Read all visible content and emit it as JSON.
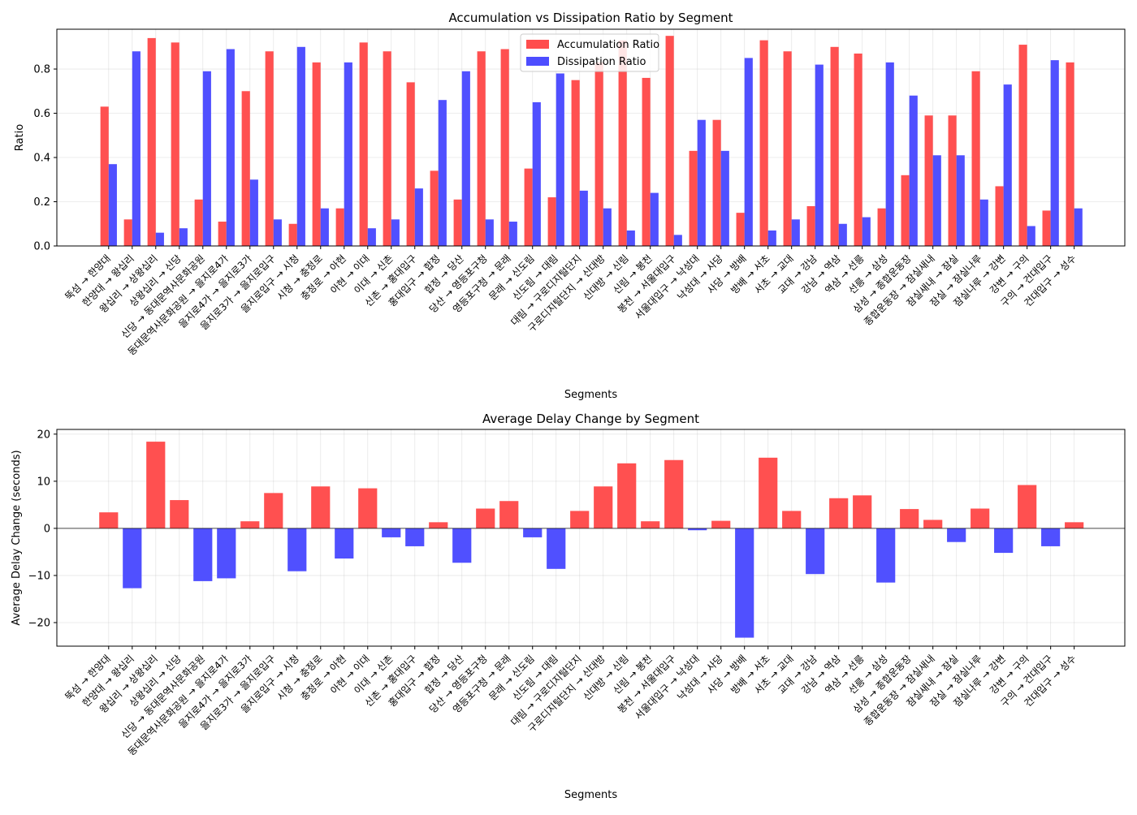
{
  "chart_data": [
    {
      "type": "bar",
      "title": "Accumulation vs Dissipation Ratio by Segment",
      "xlabel": "Segments",
      "ylabel": "Ratio",
      "ylim": [
        0,
        0.98
      ],
      "yticks": [
        0.0,
        0.2,
        0.4,
        0.6,
        0.8
      ],
      "ytick_labels": [
        "0.0",
        "0.2",
        "0.4",
        "0.6",
        "0.8"
      ],
      "grid": true,
      "legend": "top-center",
      "categories": [
        "뚝섬 → 한양대",
        "한양대 → 왕십리",
        "왕십리 → 상왕십리",
        "상왕십리 → 신당",
        "신당 → 동대문역사문화공원",
        "동대문역사문화공원 → 을지로4가",
        "을지로4가 → 을지로3가",
        "을지로3가 → 을지로입구",
        "을지로입구 → 시청",
        "시청 → 충정로",
        "충정로 → 아현",
        "아현 → 이대",
        "이대 → 신촌",
        "신촌 → 홍대입구",
        "홍대입구 → 합정",
        "합정 → 당산",
        "당산 → 영등포구청",
        "영등포구청 → 문래",
        "문래 → 신도림",
        "신도림 → 대림",
        "대림 → 구로디지털단지",
        "구로디지털단지 → 신대방",
        "신대방 → 신림",
        "신림 → 봉천",
        "봉천 → 서울대입구",
        "서울대입구 → 낙성대",
        "낙성대 → 사당",
        "사당 → 방배",
        "방배 → 서초",
        "서초 → 교대",
        "교대 → 강남",
        "강남 → 역삼",
        "역삼 → 선릉",
        "선릉 → 삼성",
        "삼성 → 종합운동장",
        "종합운동장 → 잠실새내",
        "잠실새내 → 잠실",
        "잠실 → 잠실나루",
        "잠실나루 → 강변",
        "강변 → 구의",
        "구의 → 건대입구",
        "건대입구 → 성수"
      ],
      "series": [
        {
          "name": "Accumulation Ratio",
          "color": "#ff4d4d",
          "values": [
            0.63,
            0.12,
            0.94,
            0.92,
            0.21,
            0.11,
            0.7,
            0.88,
            0.1,
            0.83,
            0.17,
            0.92,
            0.88,
            0.74,
            0.34,
            0.21,
            0.88,
            0.89,
            0.35,
            0.22,
            0.75,
            0.83,
            0.93,
            0.76,
            0.95,
            0.43,
            0.57,
            0.15,
            0.93,
            0.88,
            0.18,
            0.9,
            0.87,
            0.17,
            0.32,
            0.59,
            0.59,
            0.79,
            0.27,
            0.91,
            0.16,
            0.83
          ]
        },
        {
          "name": "Dissipation Ratio",
          "color": "#4d4dff",
          "values": [
            0.37,
            0.88,
            0.06,
            0.08,
            0.79,
            0.89,
            0.3,
            0.12,
            0.9,
            0.17,
            0.83,
            0.08,
            0.12,
            0.26,
            0.66,
            0.79,
            0.12,
            0.11,
            0.65,
            0.78,
            0.25,
            0.17,
            0.07,
            0.24,
            0.05,
            0.57,
            0.43,
            0.85,
            0.07,
            0.12,
            0.82,
            0.1,
            0.13,
            0.83,
            0.68,
            0.41,
            0.41,
            0.21,
            0.73,
            0.09,
            0.84,
            0.17
          ]
        }
      ]
    },
    {
      "type": "bar",
      "title": "Average Delay Change by Segment",
      "xlabel": "Segments",
      "ylabel": "Average Delay Change (seconds)",
      "ylim": [
        -25,
        21
      ],
      "yticks": [
        -20,
        -10,
        0,
        10,
        20
      ],
      "ytick_labels": [
        "−20",
        "−10",
        "0",
        "10",
        "20"
      ],
      "grid": true,
      "positive_color": "#ff4d4d",
      "negative_color": "#4d4dff",
      "values": [
        3.4,
        -12.7,
        18.4,
        6.0,
        -11.2,
        -10.6,
        1.5,
        7.5,
        -9.1,
        8.9,
        -6.4,
        8.5,
        -1.9,
        -3.8,
        1.3,
        -7.3,
        4.2,
        5.8,
        -1.9,
        -8.6,
        3.7,
        8.9,
        13.8,
        1.5,
        14.5,
        -0.4,
        1.6,
        -23.2,
        15.0,
        3.7,
        -9.7,
        6.4,
        7.0,
        -11.5,
        4.1,
        1.8,
        -2.9,
        4.2,
        -5.2,
        9.2,
        -3.8,
        1.3
      ]
    }
  ]
}
